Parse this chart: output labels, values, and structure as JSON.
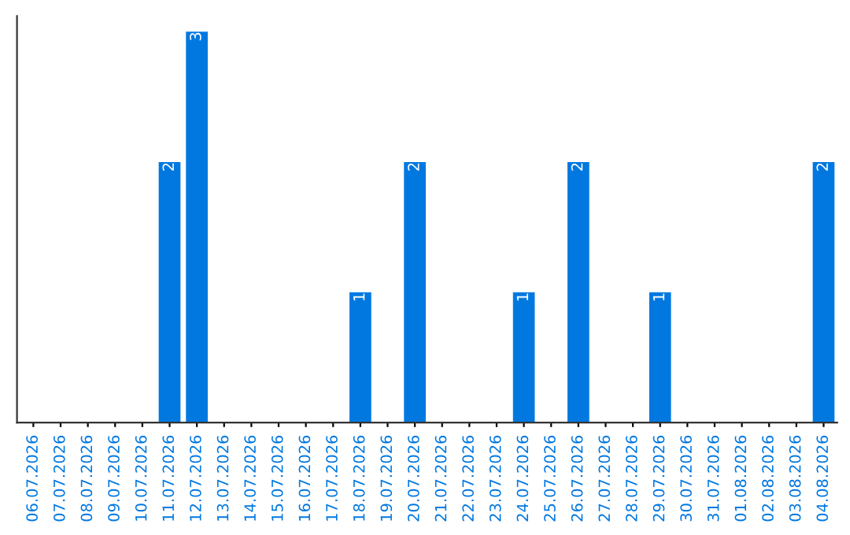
{
  "chart_data": {
    "type": "bar",
    "categories": [
      "06.07.2026",
      "07.07.2026",
      "08.07.2026",
      "09.07.2026",
      "10.07.2026",
      "11.07.2026",
      "12.07.2026",
      "13.07.2026",
      "14.07.2026",
      "15.07.2026",
      "16.07.2026",
      "17.07.2026",
      "18.07.2026",
      "19.07.2026",
      "20.07.2026",
      "21.07.2026",
      "22.07.2026",
      "23.07.2026",
      "24.07.2026",
      "25.07.2026",
      "26.07.2026",
      "27.07.2026",
      "28.07.2026",
      "29.07.2026",
      "30.07.2026",
      "31.07.2026",
      "01.08.2026",
      "02.08.2026",
      "03.08.2026",
      "04.08.2026"
    ],
    "values": [
      0,
      0,
      0,
      0,
      0,
      2,
      3,
      0,
      0,
      0,
      0,
      0,
      1,
      0,
      2,
      0,
      0,
      0,
      1,
      0,
      2,
      0,
      0,
      1,
      0,
      0,
      0,
      0,
      0,
      2
    ],
    "color": "#0078e0",
    "value_labels": [
      null,
      null,
      null,
      null,
      null,
      "2",
      "3",
      null,
      null,
      null,
      null,
      null,
      "1",
      null,
      "2",
      null,
      null,
      null,
      "1",
      null,
      "2",
      null,
      null,
      "1",
      null,
      null,
      null,
      null,
      null,
      "2"
    ],
    "tick_labels": "x"
  }
}
